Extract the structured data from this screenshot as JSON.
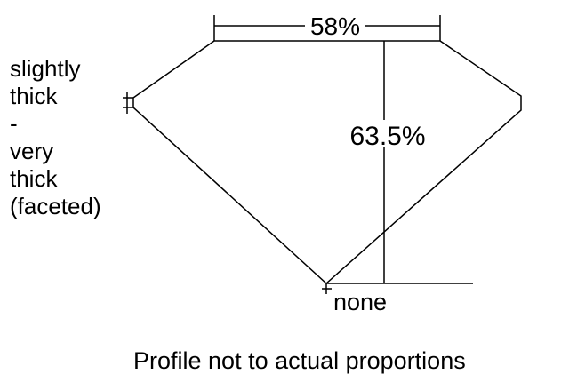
{
  "girdle_label": [
    "slightly",
    "thick",
    "-",
    "very",
    "thick",
    "(faceted)"
  ],
  "table_percent": "58%",
  "depth_percent": "63.5%",
  "culet_label": "none",
  "caption": "Profile not to actual proportions"
}
